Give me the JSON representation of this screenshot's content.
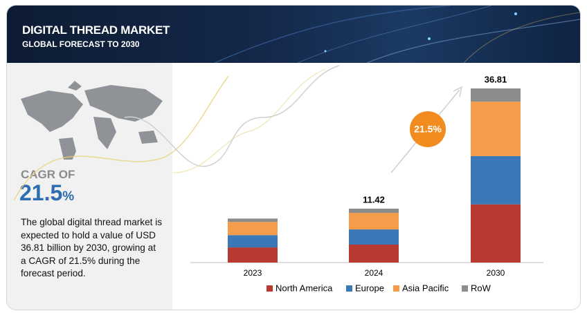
{
  "header": {
    "title": "DIGITAL THREAD MARKET",
    "subtitle": "GLOBAL FORECAST TO 2030"
  },
  "sidebar": {
    "cagr_label": "CAGR OF",
    "cagr_value": "21.5",
    "cagr_unit": "%",
    "description": "The global digital thread market is expected to hold a value of USD 36.81 billion by 2030, growing at a CAGR of 21.5% during the forecast period."
  },
  "badge": "21.5%",
  "chart_data": {
    "type": "bar",
    "stacked": true,
    "categories": [
      "2023",
      "2024",
      "2030"
    ],
    "series": [
      {
        "name": "North America",
        "color": "#b83a30",
        "values": [
          3.2,
          3.8,
          12.3
        ]
      },
      {
        "name": "Europe",
        "color": "#3a78b8",
        "values": [
          2.6,
          3.2,
          10.2
        ]
      },
      {
        "name": "Asia Pacific",
        "color": "#f59c4a",
        "values": [
          2.8,
          3.5,
          11.5
        ]
      },
      {
        "name": "RoW",
        "color": "#8c8c8c",
        "values": [
          0.7,
          0.9,
          2.8
        ]
      }
    ],
    "totals": [
      null,
      11.42,
      36.81
    ]
  }
}
